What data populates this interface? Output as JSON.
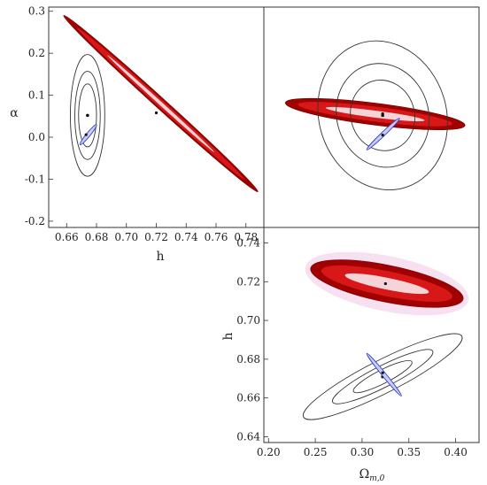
{
  "chart_data": [
    {
      "type": "contour",
      "panel": "top-left",
      "xlabel": "h",
      "ylabel": "α",
      "xlim": [
        0.648,
        0.792
      ],
      "ylim": [
        -0.215,
        0.31
      ],
      "xticks": [
        "0.66",
        "0.68",
        "0.70",
        "0.72",
        "0.74",
        "0.76",
        "0.78"
      ],
      "yticks": [
        "-0.2",
        "-0.1",
        "0.0",
        "0.1",
        "0.2",
        "0.3"
      ],
      "series": [
        {
          "color": "#cc0000",
          "center": [
            0.72,
            0.058
          ],
          "endpoints": [
            [
              0.658,
              0.29
            ],
            [
              0.788,
              -0.13
            ]
          ],
          "widths": [
            0.028,
            0.018,
            0.008
          ]
        },
        {
          "color": "#333333",
          "center": [
            0.674,
            0.052
          ],
          "radii": [
            [
              0.006,
              0.075
            ],
            [
              0.0085,
              0.105
            ],
            [
              0.0115,
              0.145
            ]
          ]
        },
        {
          "color": "#3344cc",
          "center": [
            0.673,
            0.006
          ],
          "endpoints": [
            [
              0.669,
              -0.018
            ],
            [
              0.68,
              0.03
            ]
          ]
        }
      ]
    },
    {
      "type": "contour",
      "panel": "top-right",
      "xlim": [
        0.195,
        0.425
      ],
      "ylim": [
        -0.215,
        0.31
      ],
      "series": [
        {
          "color": "#cc0000",
          "center": [
            0.322,
            0.056
          ],
          "endpoints": [
            [
              0.218,
              0.082
            ],
            [
              0.41,
              0.028
            ]
          ],
          "widths": [
            0.026,
            0.017,
            0.008
          ]
        },
        {
          "color": "#333333",
          "center": [
            0.322,
            0.052
          ],
          "radii": [
            [
              0.034,
              0.085
            ],
            [
              0.049,
              0.125
            ],
            [
              0.068,
              0.18
            ]
          ],
          "rotation_deg": -18
        },
        {
          "color": "#3344cc",
          "center": [
            0.322,
            0.005
          ],
          "endpoints": [
            [
              0.305,
              -0.03
            ],
            [
              0.34,
              0.045
            ]
          ]
        }
      ]
    },
    {
      "type": "contour",
      "panel": "bottom-right",
      "xlabel": "Ω_{m,0}",
      "ylabel": "h",
      "xlim": [
        0.195,
        0.425
      ],
      "ylim": [
        0.637,
        0.748
      ],
      "xticks": [
        "0.20",
        "0.25",
        "0.30",
        "0.35",
        "0.40"
      ],
      "yticks": [
        "0.64",
        "0.66",
        "0.68",
        "0.70",
        "0.72",
        "0.74"
      ],
      "series": [
        {
          "color": "#cc0000",
          "center": [
            0.325,
            0.719
          ],
          "endpoints": [
            [
              0.245,
              0.727
            ],
            [
              0.408,
              0.711
            ]
          ],
          "widths": [
            0.0095,
            0.0065,
            0.003
          ]
        },
        {
          "color": "#333333",
          "center": [
            0.322,
            0.671
          ],
          "radii": [
            [
              0.035,
              0.0035
            ],
            [
              0.06,
              0.0055
            ],
            [
              0.095,
              0.0085
            ]
          ],
          "rotation_deg": -27
        },
        {
          "color": "#3344cc",
          "center": [
            0.322,
            0.673
          ],
          "endpoints": [
            [
              0.305,
              0.683
            ],
            [
              0.342,
              0.661
            ]
          ]
        }
      ]
    }
  ]
}
